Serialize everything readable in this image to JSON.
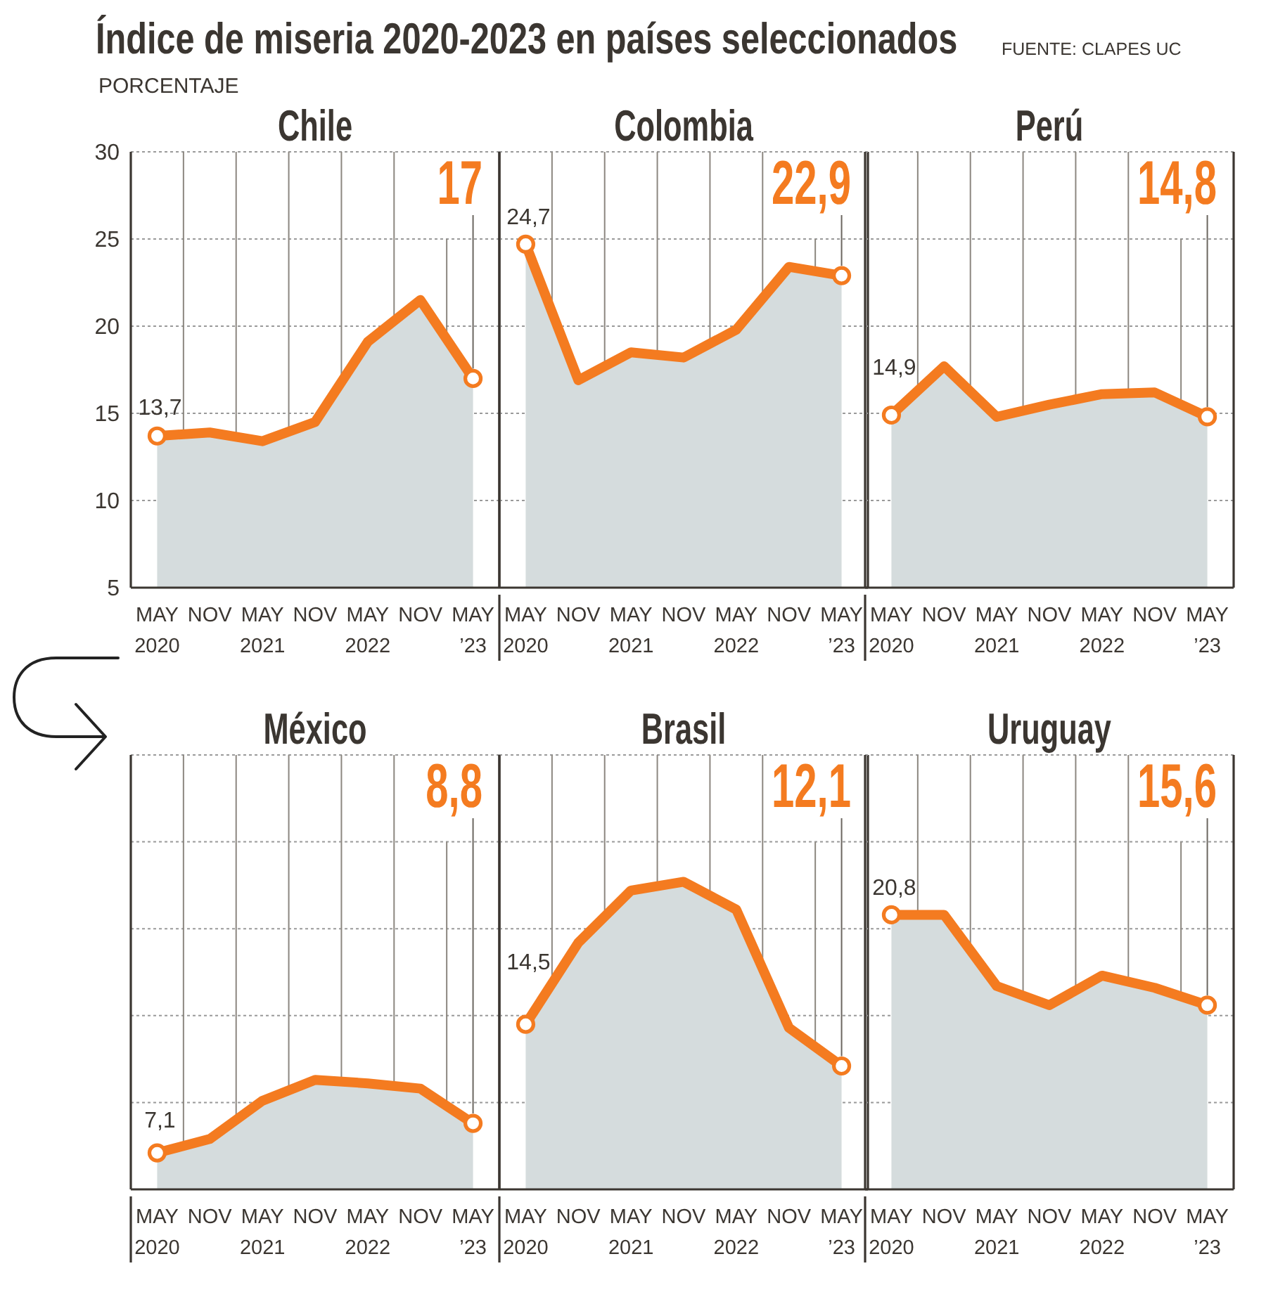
{
  "chart_data": [
    {
      "type": "other",
      "title": "Índice de miseria 2020-2023 en países seleccionados",
      "annotations": [
        "FUENTE: CLAPES UC"
      ]
    },
    {
      "type": "area",
      "title": "Chile",
      "ylabel": "PORCENTAJE",
      "color": "#f47b20",
      "categories": [
        "MAY\n2020",
        "NOV",
        "MAY\n2021",
        "NOV",
        "MAY\n2022",
        "NOV",
        "MAY\n’23"
      ],
      "ylim": [
        5,
        30
      ],
      "yticks": [
        5,
        10,
        15,
        20,
        25,
        30
      ],
      "grid": true,
      "series": [
        {
          "type": "area",
          "color": "#d5dcdd",
          "values": [
            13.7,
            13.9,
            13.4,
            14.5,
            19.1,
            21.5,
            17
          ]
        },
        {
          "type": "scatter",
          "color": "#f47b20",
          "marker": "circle",
          "values": [
            13.7,
            null,
            null,
            null,
            null,
            null,
            17
          ],
          "value_labels": [
            "13,7",
            null,
            null,
            null,
            null,
            null,
            "17"
          ]
        }
      ]
    },
    {
      "type": "area",
      "title": "Colombia",
      "color": "#f47b20",
      "categories": [
        "MAY\n2020",
        "NOV",
        "MAY\n2021",
        "NOV",
        "MAY\n2022",
        "NOV",
        "MAY\n’23"
      ],
      "ylim": [
        5,
        30
      ],
      "yticks": [
        5,
        10,
        15,
        20,
        25,
        30
      ],
      "tick_labels": "x",
      "grid": true,
      "series": [
        {
          "type": "area",
          "color": "#d5dcdd",
          "values": [
            24.7,
            16.9,
            18.5,
            18.2,
            19.8,
            23.4,
            22.9
          ]
        },
        {
          "type": "scatter",
          "color": "#f47b20",
          "marker": "circle",
          "values": [
            24.7,
            null,
            null,
            null,
            null,
            null,
            22.9
          ],
          "value_labels": [
            "24,7",
            null,
            null,
            null,
            null,
            null,
            "22,9"
          ]
        }
      ]
    },
    {
      "type": "area",
      "title": "Perú",
      "color": "#f47b20",
      "categories": [
        "MAY\n2020",
        "NOV",
        "MAY\n2021",
        "NOV",
        "MAY\n2022",
        "NOV",
        "MAY\n’23"
      ],
      "ylim": [
        5,
        30
      ],
      "yticks": [
        5,
        10,
        15,
        20,
        25,
        30
      ],
      "tick_labels": "x",
      "grid": true,
      "series": [
        {
          "type": "area",
          "color": "#d5dcdd",
          "values": [
            14.9,
            17.7,
            14.8,
            15.5,
            16.1,
            16.2,
            14.8
          ]
        },
        {
          "type": "scatter",
          "color": "#f47b20",
          "marker": "circle",
          "values": [
            14.9,
            null,
            null,
            null,
            null,
            null,
            14.8
          ],
          "value_labels": [
            "14,9",
            null,
            null,
            null,
            null,
            null,
            "14,8"
          ]
        }
      ]
    },
    {
      "type": "area",
      "title": "México",
      "color": "#f47b20",
      "categories": [
        "MAY\n2020",
        "NOV",
        "MAY\n2021",
        "NOV",
        "MAY\n2022",
        "NOV",
        "MAY\n’23"
      ],
      "ylim": [
        5,
        30
      ],
      "yticks": [
        5,
        10,
        15,
        20,
        25,
        30
      ],
      "tick_labels": "x",
      "grid": true,
      "series": [
        {
          "type": "area",
          "color": "#d5dcdd",
          "values": [
            7.1,
            7.9,
            10.1,
            11.3,
            11.1,
            10.8,
            8.8
          ]
        },
        {
          "type": "scatter",
          "color": "#f47b20",
          "marker": "circle",
          "values": [
            7.1,
            null,
            null,
            null,
            null,
            null,
            8.8
          ],
          "value_labels": [
            "7,1",
            null,
            null,
            null,
            null,
            null,
            "8,8"
          ]
        }
      ]
    },
    {
      "type": "area",
      "title": "Brasil",
      "color": "#f47b20",
      "categories": [
        "MAY\n2020",
        "NOV",
        "MAY\n2021",
        "NOV",
        "MAY\n2022",
        "NOV",
        "MAY\n’23"
      ],
      "ylim": [
        5,
        30
      ],
      "yticks": [
        5,
        10,
        15,
        20,
        25,
        30
      ],
      "tick_labels": "x",
      "grid": true,
      "series": [
        {
          "type": "area",
          "color": "#d5dcdd",
          "values": [
            14.5,
            19.2,
            22.2,
            22.7,
            21.1,
            14.3,
            12.1
          ]
        },
        {
          "type": "scatter",
          "color": "#f47b20",
          "marker": "circle",
          "values": [
            14.5,
            null,
            null,
            null,
            null,
            null,
            12.1
          ],
          "value_labels": [
            "14,5",
            null,
            null,
            null,
            null,
            null,
            "12,1"
          ]
        }
      ]
    },
    {
      "type": "area",
      "title": "Uruguay",
      "color": "#f47b20",
      "categories": [
        "MAY\n2020",
        "NOV",
        "MAY\n2021",
        "NOV",
        "MAY\n2022",
        "NOV",
        "MAY\n’23"
      ],
      "ylim": [
        5,
        30
      ],
      "yticks": [
        5,
        10,
        15,
        20,
        25,
        30
      ],
      "tick_labels": "x",
      "grid": true,
      "series": [
        {
          "type": "area",
          "color": "#d5dcdd",
          "values": [
            20.8,
            20.8,
            16.7,
            15.6,
            17.3,
            16.6,
            15.6
          ]
        },
        {
          "type": "scatter",
          "color": "#f47b20",
          "marker": "circle",
          "values": [
            20.8,
            null,
            null,
            null,
            null,
            null,
            15.6
          ],
          "value_labels": [
            "20,8",
            null,
            null,
            null,
            null,
            null,
            "15,6"
          ]
        }
      ]
    }
  ]
}
